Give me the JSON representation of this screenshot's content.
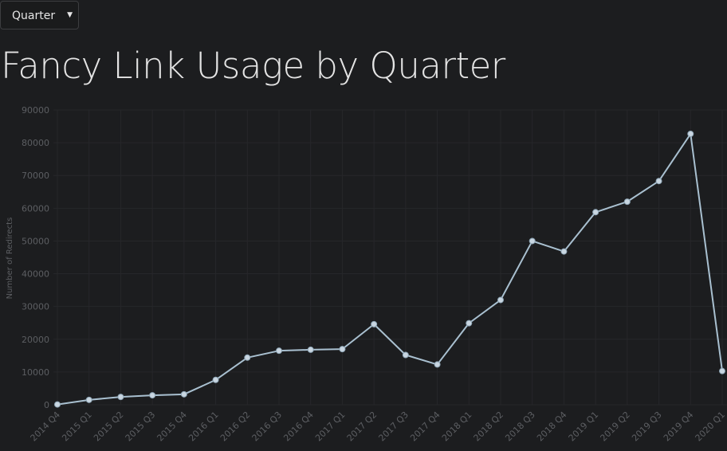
{
  "controls": {
    "period_select": {
      "value": "Quarter",
      "arrow": "▼"
    }
  },
  "page": {
    "title": "Fancy Link Usage by Quarter"
  },
  "colors": {
    "background": "#1c1d1f",
    "line": "#a9c0d0",
    "point_fill": "#c9d6e1",
    "tick_label": "#5c5e62",
    "grid": "#26272a"
  },
  "chart_data": {
    "type": "line",
    "title": "",
    "xlabel": "",
    "ylabel": "Number of Redirects",
    "ylim": [
      0,
      90000
    ],
    "yticks": [
      0,
      10000,
      20000,
      30000,
      40000,
      50000,
      60000,
      70000,
      80000,
      90000
    ],
    "grid": true,
    "legend": "none",
    "categories": [
      "2014 Q4",
      "2015 Q1",
      "2015 Q2",
      "2015 Q3",
      "2015 Q4",
      "2016 Q1",
      "2016 Q2",
      "2016 Q3",
      "2016 Q4",
      "2017 Q1",
      "2017 Q2",
      "2017 Q3",
      "2017 Q4",
      "2018 Q1",
      "2018 Q2",
      "2018 Q3",
      "2018 Q4",
      "2019 Q1",
      "2019 Q2",
      "2019 Q3",
      "2019 Q4",
      "2020 Q1"
    ],
    "series": [
      {
        "values": [
          100,
          1500,
          2400,
          2900,
          3200,
          7600,
          14400,
          16500,
          16800,
          17000,
          24600,
          15200,
          12300,
          24900,
          32000,
          50000,
          46800,
          58800,
          62000,
          68300,
          82700,
          10300
        ]
      }
    ]
  }
}
